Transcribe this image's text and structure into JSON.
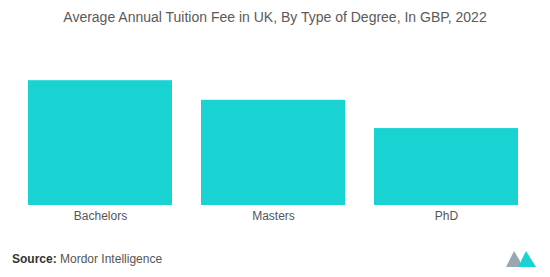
{
  "chart_data": {
    "type": "bar",
    "title": "Average Annual Tuition Fee in UK, By Type of Degree, In GBP, 2022",
    "categories": [
      "Bachelors",
      "Masters",
      "PhD"
    ],
    "values": [
      15900,
      13400,
      9800
    ],
    "color": "#19d3d3",
    "ylim": [
      0,
      20000
    ],
    "grid": false,
    "tick_labels": "x",
    "caption": "Source: Mordor Intelligence"
  }
}
